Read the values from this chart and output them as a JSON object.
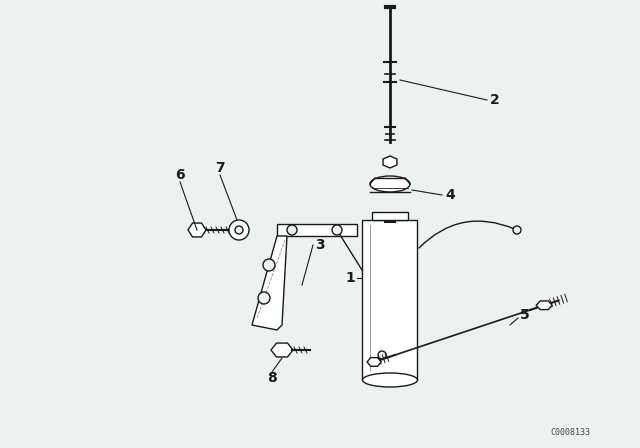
{
  "bg_color": "#eef2ee",
  "line_color": "#1a1a1a",
  "watermark": "C0008133",
  "fig_w": 6.4,
  "fig_h": 4.48,
  "dpi": 100
}
